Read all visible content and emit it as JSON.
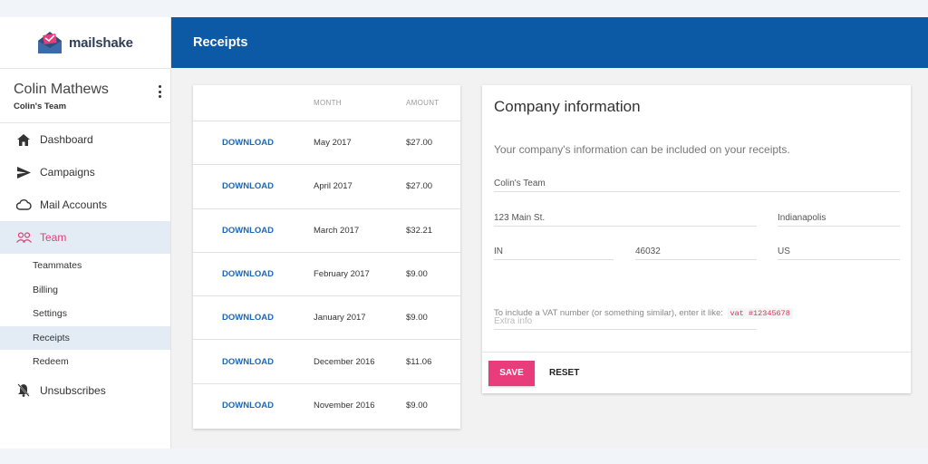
{
  "brand": {
    "name": "mailshake",
    "accent": "#e93d7b",
    "primary": "#0c5aa6"
  },
  "user": {
    "name": "Colin Mathews",
    "team": "Colin's Team"
  },
  "nav": {
    "items": [
      {
        "label": "Dashboard",
        "icon": "home-icon"
      },
      {
        "label": "Campaigns",
        "icon": "send-icon"
      },
      {
        "label": "Mail Accounts",
        "icon": "cloud-icon"
      },
      {
        "label": "Team",
        "icon": "people-icon",
        "active": true
      }
    ],
    "sub_items": [
      {
        "label": "Teammates"
      },
      {
        "label": "Billing"
      },
      {
        "label": "Settings"
      },
      {
        "label": "Receipts",
        "active": true
      },
      {
        "label": "Redeem"
      }
    ],
    "footer_item": {
      "label": "Unsubscribes",
      "icon": "bell-off-icon"
    }
  },
  "header": {
    "title": "Receipts"
  },
  "receipts": {
    "columns": [
      "",
      "MONTH",
      "AMOUNT"
    ],
    "rows": [
      {
        "action": "DOWNLOAD",
        "month": "May 2017",
        "amount": "$27.00"
      },
      {
        "action": "DOWNLOAD",
        "month": "April 2017",
        "amount": "$27.00"
      },
      {
        "action": "DOWNLOAD",
        "month": "March 2017",
        "amount": "$32.21"
      },
      {
        "action": "DOWNLOAD",
        "month": "February 2017",
        "amount": "$9.00"
      },
      {
        "action": "DOWNLOAD",
        "month": "January 2017",
        "amount": "$9.00"
      },
      {
        "action": "DOWNLOAD",
        "month": "December 2016",
        "amount": "$11.06"
      },
      {
        "action": "DOWNLOAD",
        "month": "November 2016",
        "amount": "$9.00"
      }
    ]
  },
  "company": {
    "title": "Company information",
    "description": "Your company's information can be included on your receipts.",
    "fields": {
      "company_name": "Colin's Team",
      "address": "123 Main St.",
      "city": "Indianapolis",
      "state": "IN",
      "zip": "46032",
      "country": "US",
      "extra_placeholder": "Extra info"
    },
    "vat_note": "To include a VAT number (or something similar), enter it like:",
    "vat_example": "vat #12345678",
    "save_label": "SAVE",
    "reset_label": "RESET"
  }
}
